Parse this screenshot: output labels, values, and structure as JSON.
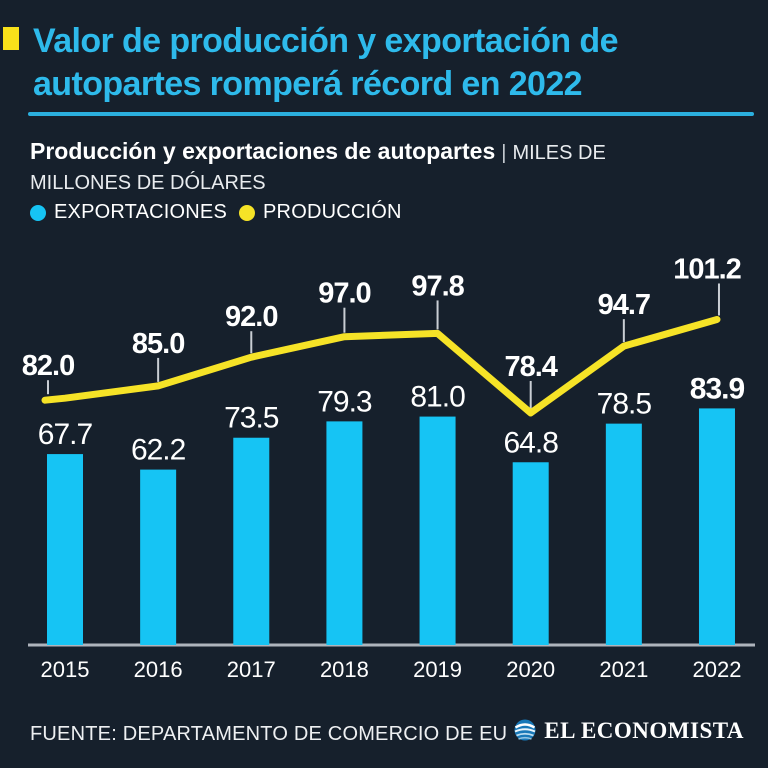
{
  "colors": {
    "background": "#16202C",
    "bar_cyan": "#16C4F4",
    "line_yellow": "#F6E327",
    "title_cyan": "#2EBAEB",
    "divider_cyan": "#2BAFDE",
    "accent_marker_yellow": "#F8E11A",
    "axis_gray": "#AEB4BC",
    "leader_tick_gray": "#C9CED4",
    "text_white": "#FFFFFF"
  },
  "header": {
    "title_line1": "Valor de producción y exportación de",
    "title_line2": "autopartes romperá récord en 2022"
  },
  "subtitle": {
    "bold": "Producción y exportaciones de autopartes",
    "separator": "|",
    "unit_line1": "MILES DE",
    "unit_line2": "MILLONES DE DÓLARES"
  },
  "legend": {
    "items": [
      {
        "label": "EXPORTACIONES",
        "color": "#16C4F4"
      },
      {
        "label": "PRODUCCIÓN",
        "color": "#F6E327"
      }
    ]
  },
  "chart_data": {
    "type": "bar+line",
    "title": "Producción y exportaciones de autopartes",
    "unit": "MILES DE MILLONES DE DÓLARES",
    "categories": [
      "2015",
      "2016",
      "2017",
      "2018",
      "2019",
      "2020",
      "2021",
      "2022"
    ],
    "series": [
      {
        "name": "EXPORTACIONES",
        "type": "bar",
        "color": "#16C4F4",
        "values": [
          67.7,
          62.2,
          73.5,
          79.3,
          81.0,
          64.8,
          78.5,
          83.9
        ]
      },
      {
        "name": "PRODUCCIÓN",
        "type": "line",
        "color": "#F6E327",
        "values": [
          82.0,
          85.0,
          92.0,
          97.0,
          97.8,
          78.4,
          94.7,
          101.2
        ]
      }
    ],
    "value_labels": true,
    "highlight_last_category": "2022",
    "legend_position": "top-left",
    "grid": false,
    "ylim": [
      0,
      110
    ]
  },
  "footer": {
    "source": "FUENTE: DEPARTAMENTO DE COMERCIO DE EU",
    "brand": "EL ECONOMISTA"
  }
}
